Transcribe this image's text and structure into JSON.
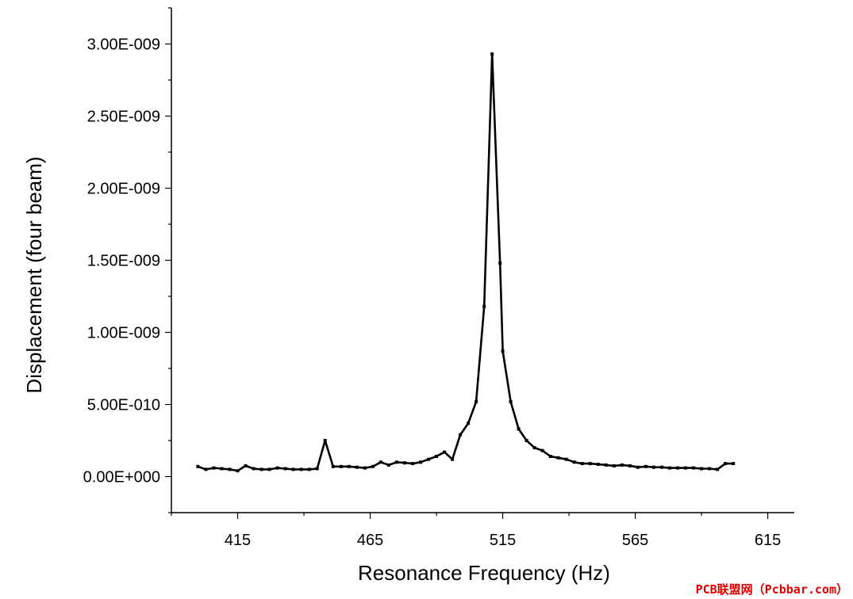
{
  "chart_data": {
    "type": "line",
    "title": "",
    "xlabel": "Resonance Frequency (Hz)",
    "ylabel": "Displacement (four beam)",
    "xlim": [
      390,
      625
    ],
    "ylim": [
      -2.5e-10,
      3.25e-09
    ],
    "x_ticks": [
      415,
      465,
      515,
      565,
      615
    ],
    "x_tick_labels": [
      "415",
      "465",
      "515",
      "565",
      "615"
    ],
    "y_ticks": [
      0,
      5e-10,
      1e-09,
      1.5e-09,
      2e-09,
      2.5e-09,
      3e-09
    ],
    "y_tick_labels": [
      "0.00E+000",
      "5.00E-010",
      "1.00E-009",
      "1.50E-009",
      "2.00E-009",
      "2.50E-009",
      "3.00E-009"
    ],
    "grid": false,
    "legend": "none",
    "line_color": "#000000",
    "series": [
      {
        "x": [
          400,
          403,
          406,
          409,
          412,
          415,
          418,
          421,
          424,
          427,
          430,
          433,
          436,
          439,
          442,
          445,
          448,
          451,
          454,
          457,
          460,
          463,
          466,
          469,
          472,
          475,
          478,
          481,
          484,
          487,
          490,
          493,
          496,
          499,
          502,
          505,
          508,
          511,
          514,
          515,
          518,
          521,
          524,
          527,
          530,
          533,
          536,
          539,
          542,
          545,
          548,
          551,
          554,
          557,
          560,
          563,
          566,
          569,
          572,
          575,
          578,
          581,
          584,
          587,
          590,
          593,
          596,
          599,
          602
        ],
        "y": [
          7e-11,
          5e-11,
          6e-11,
          5.5e-11,
          5e-11,
          4e-11,
          7.5e-11,
          5.5e-11,
          5e-11,
          5e-11,
          6e-11,
          5.5e-11,
          5e-11,
          5e-11,
          5e-11,
          5.5e-11,
          2.5e-10,
          7e-11,
          7e-11,
          7e-11,
          6.5e-11,
          6e-11,
          7e-11,
          1e-10,
          8e-11,
          1e-10,
          9.5e-11,
          9e-11,
          1e-10,
          1.2e-10,
          1.4e-10,
          1.7e-10,
          1.2e-10,
          2.9e-10,
          3.7e-10,
          5.2e-10,
          1.18e-09,
          2.93e-09,
          1.48e-09,
          8.7e-10,
          5.2e-10,
          3.3e-10,
          2.5e-10,
          2e-10,
          1.8e-10,
          1.4e-10,
          1.3e-10,
          1.2e-10,
          1e-10,
          9e-11,
          9e-11,
          8.5e-11,
          8e-11,
          7.5e-11,
          8e-11,
          7.5e-11,
          6.5e-11,
          7e-11,
          6.5e-11,
          6.5e-11,
          6e-11,
          6e-11,
          6e-11,
          6e-11,
          5.5e-11,
          5.5e-11,
          5e-11,
          9e-11,
          9e-11
        ]
      }
    ]
  },
  "watermark": "PCB联盟网（Pcbbar.com）"
}
